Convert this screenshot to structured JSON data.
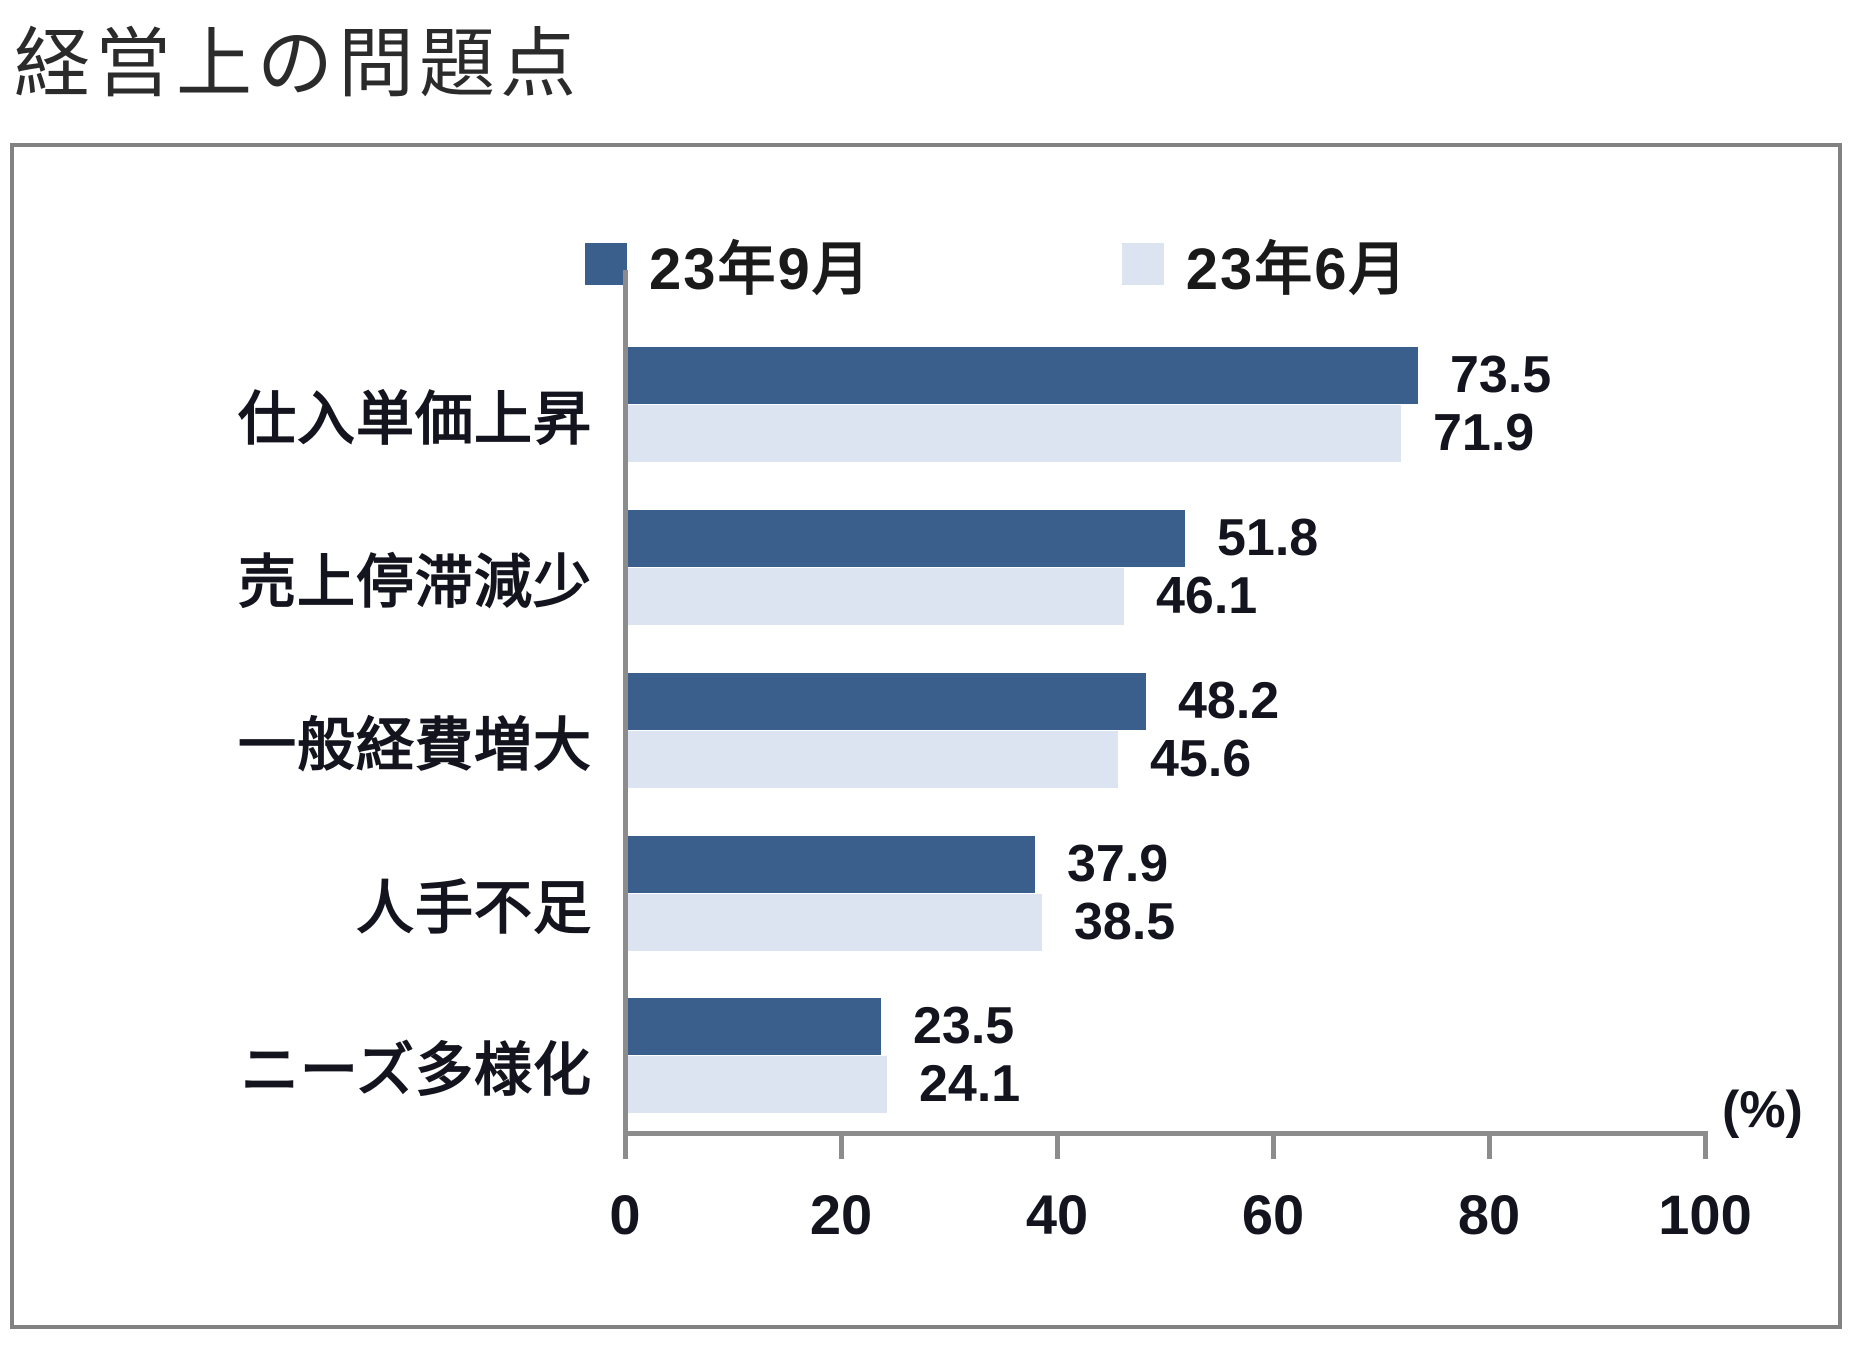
{
  "title": "経営上の問題点",
  "legend": {
    "items": [
      {
        "label": "23年9月",
        "color": "#3a5f8c"
      },
      {
        "label": "23年6月",
        "color": "#dce3f1"
      }
    ]
  },
  "axis": {
    "unit_label": "(%)",
    "ticks": [
      0,
      20,
      40,
      60,
      80,
      100
    ]
  },
  "colors": {
    "series_dark": "#3a5f8c",
    "series_light": "#dce3f1",
    "axis_gray": "#8c8c8c",
    "frame_gray": "#828282"
  },
  "chart_data": {
    "type": "bar",
    "orientation": "horizontal",
    "title": "経営上の問題点",
    "categories": [
      "仕入単価上昇",
      "売上停滞減少",
      "一般経費増大",
      "人手不足",
      "ニーズ多様化"
    ],
    "series": [
      {
        "name": "23年9月",
        "color": "#3a5f8c",
        "values": [
          73.5,
          51.8,
          48.2,
          37.9,
          23.5
        ]
      },
      {
        "name": "23年6月",
        "color": "#dce3f1",
        "values": [
          71.9,
          46.1,
          45.6,
          38.5,
          24.1
        ]
      }
    ],
    "xlabel": "(%)",
    "xlim": [
      0,
      100
    ],
    "tick_step": 20,
    "grid": false,
    "legend_position": "top",
    "value_labels": true
  }
}
